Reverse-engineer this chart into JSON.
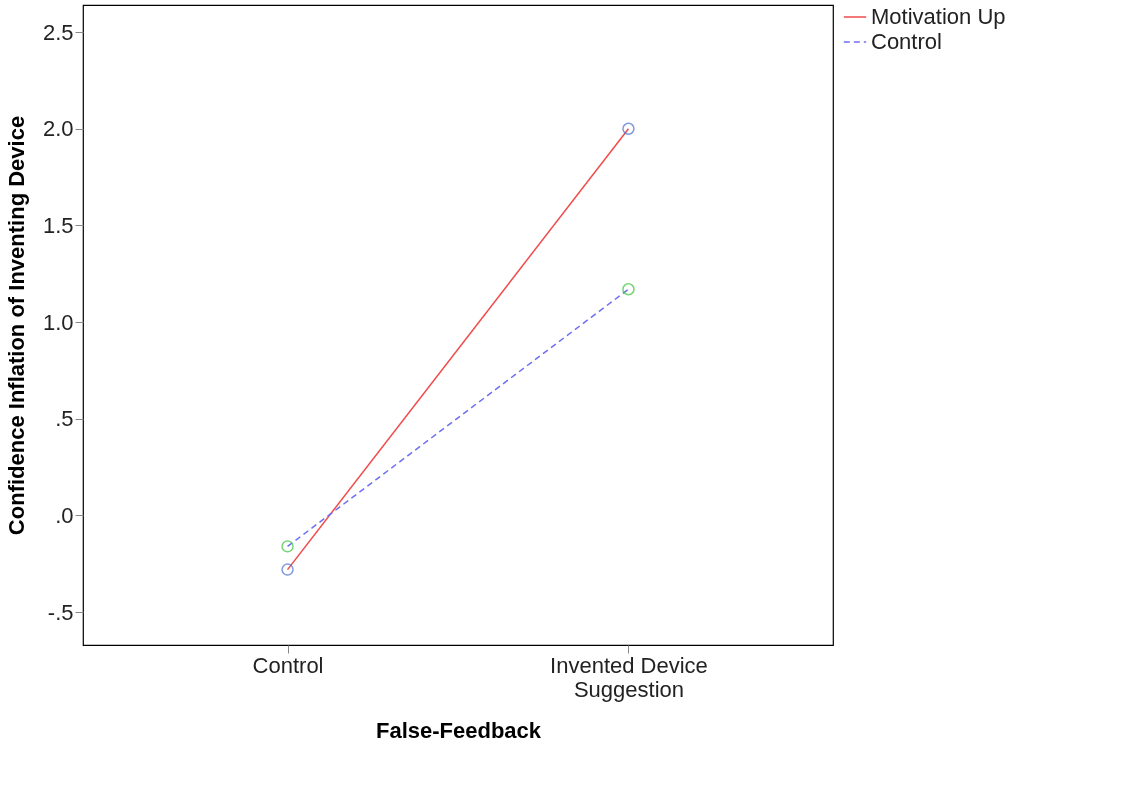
{
  "chart_data": {
    "type": "line",
    "xlabel": "False-Feedback",
    "ylabel": "Confidence Inflation of Inventing Device",
    "categories": [
      "Control",
      "Invented Device Suggestion"
    ],
    "series": [
      {
        "name": "Motivation Up",
        "color": "#f04b4b",
        "values": [
          -0.28,
          2.0
        ],
        "line_style": "solid"
      },
      {
        "name": "Control",
        "color": "#6e6ef5",
        "values": [
          -0.16,
          1.17
        ],
        "line_style": "dashed"
      },
      {
        "type": "scatter",
        "color": "#4d6fd0",
        "values": [
          -0.28,
          2.0
        ],
        "marker": "circle"
      },
      {
        "type": "scatter",
        "color": "#3ec43e",
        "values": [
          -0.16,
          1.17
        ],
        "marker": "circle"
      }
    ],
    "ylim": [
      -0.67,
      2.64
    ],
    "yticks": [
      {
        "value": -0.5,
        "label": "-.5"
      },
      {
        "value": 0,
        "label": ".0"
      },
      {
        "value": 0.5,
        "label": ".5"
      },
      {
        "value": 1.0,
        "label": "1.0"
      },
      {
        "value": 1.5,
        "label": "1.5"
      },
      {
        "value": 2.0,
        "label": "2.0"
      },
      {
        "value": 2.5,
        "label": "2.5"
      }
    ],
    "grid": false,
    "legend": "top right"
  }
}
